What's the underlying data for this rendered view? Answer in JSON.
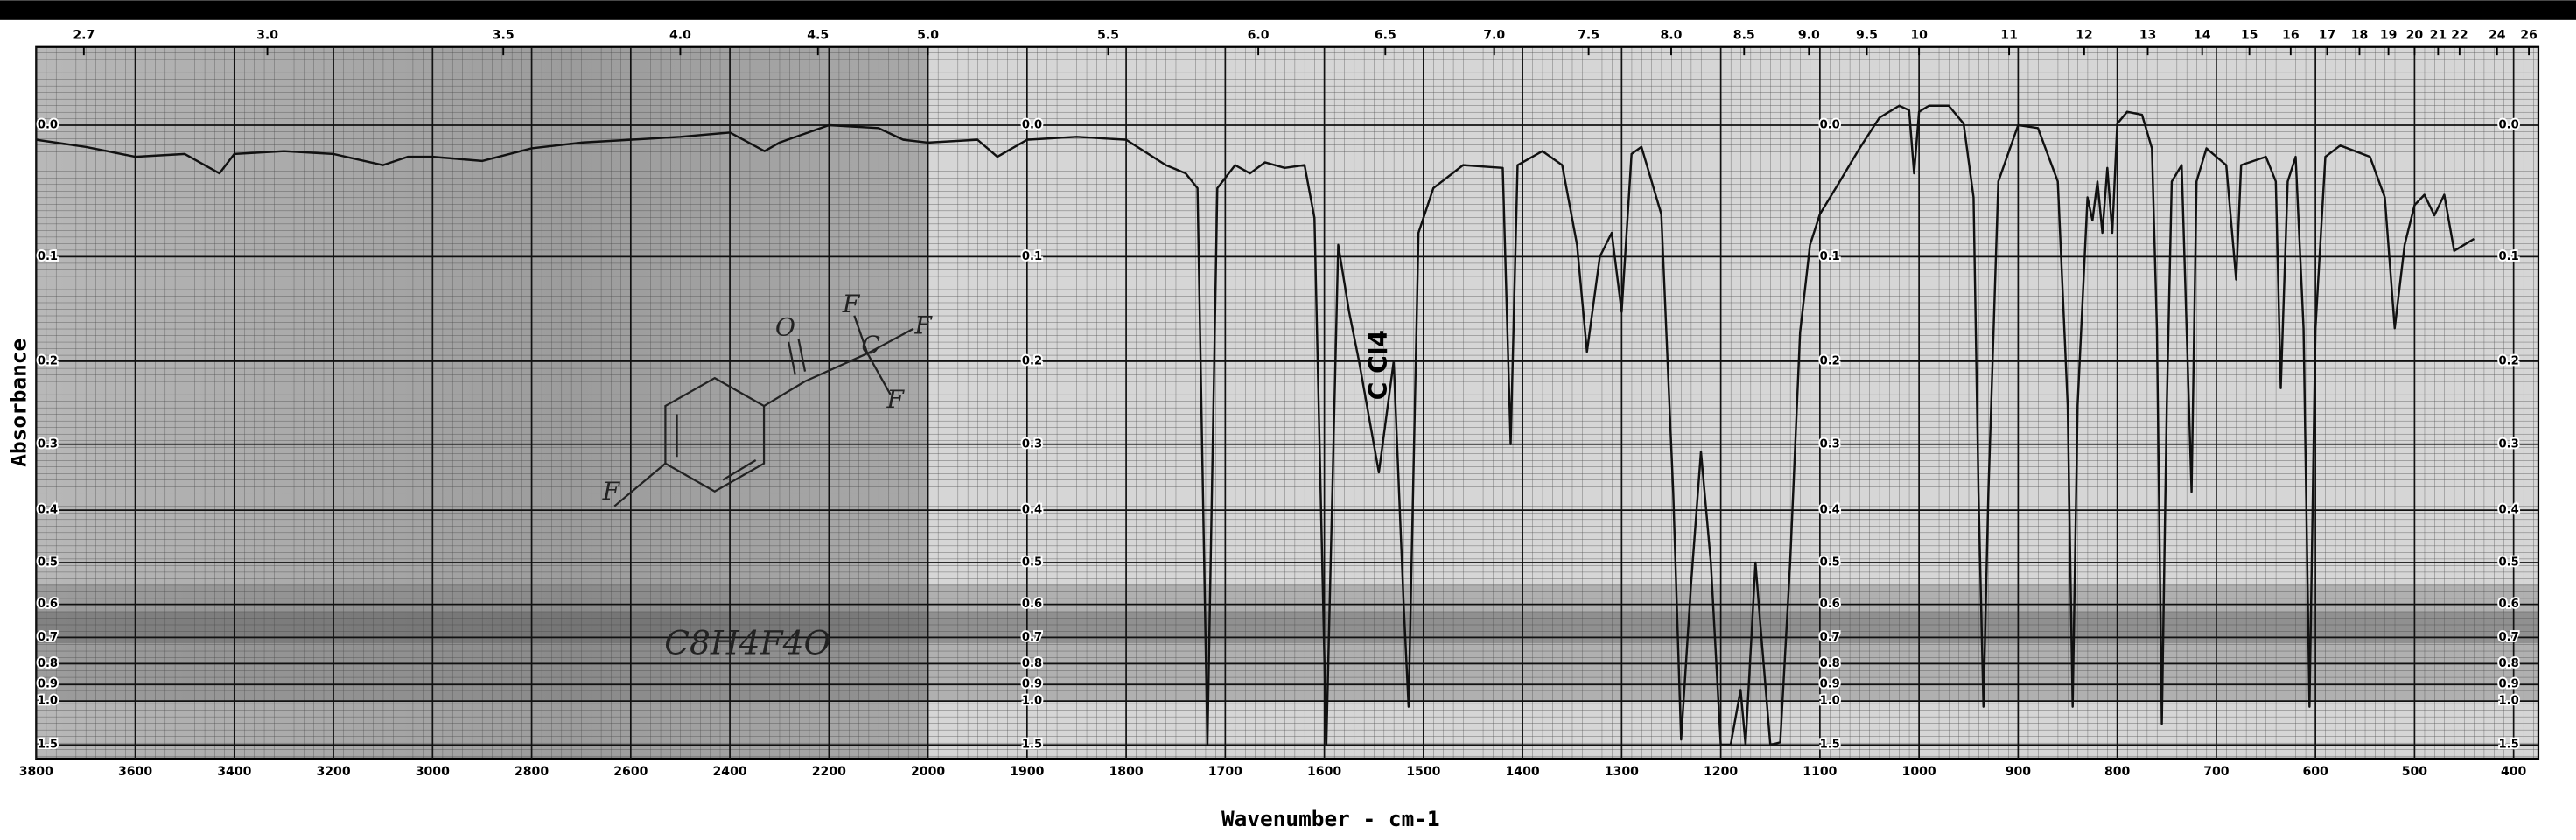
{
  "chart_data": {
    "type": "line",
    "ylabel": "Absorbance",
    "xlabel": "Wavenumber - cm-1",
    "annotations": [
      "C Cl4",
      "C8H4F4O"
    ],
    "structure_atoms": [
      "O",
      "F",
      "C",
      "F",
      "F",
      "F"
    ],
    "color": "#111111",
    "grid": true,
    "xlim": [
      3800,
      375
    ],
    "ylim": [
      -0.05,
      2
    ],
    "xticks": [
      3800,
      3600,
      3400,
      3200,
      3000,
      2800,
      2600,
      2400,
      2200,
      2000,
      1900,
      1800,
      1700,
      1600,
      1500,
      1400,
      1300,
      1200,
      1100,
      1000,
      900,
      800,
      700,
      600,
      500,
      400
    ],
    "yticks": [
      {
        "value": 0,
        "label": "0.0"
      },
      0.1,
      0.2,
      0.3,
      0.4,
      0.5,
      0.6,
      0.7,
      0.8,
      0.9,
      {
        "value": 1,
        "label": "1.0"
      },
      1.5
    ],
    "x2ticks": [
      2.7,
      {
        "value": 3,
        "label": "3.0"
      },
      3.5,
      {
        "value": 4,
        "label": "4.0"
      },
      4.5,
      {
        "value": 5,
        "label": "5.0"
      },
      5.5,
      {
        "value": 6,
        "label": "6.0"
      },
      6.5,
      {
        "value": 7,
        "label": "7.0"
      },
      7.5,
      {
        "value": 8,
        "label": "8.0"
      },
      8.5,
      {
        "value": 9,
        "label": "9.0"
      },
      9.5,
      10,
      11,
      12,
      13,
      14,
      15,
      16,
      17,
      18,
      19,
      20,
      21,
      22,
      24,
      26
    ],
    "x": [
      3800,
      3700,
      3600,
      3500,
      3430,
      3400,
      3300,
      3200,
      3100,
      3050,
      3000,
      2900,
      2800,
      2700,
      2600,
      2500,
      2400,
      2330,
      2300,
      2200,
      2100,
      2050,
      2000,
      1950,
      1930,
      1900,
      1850,
      1800,
      1760,
      1740,
      1728,
      1718,
      1708,
      1690,
      1675,
      1660,
      1640,
      1620,
      1610,
      1598,
      1586,
      1575,
      1565,
      1545,
      1530,
      1520,
      1515,
      1505,
      1490,
      1460,
      1420,
      1412,
      1405,
      1380,
      1360,
      1345,
      1335,
      1322,
      1310,
      1300,
      1290,
      1280,
      1260,
      1248,
      1240,
      1230,
      1220,
      1210,
      1200,
      1190,
      1180,
      1175,
      1165,
      1160,
      1150,
      1140,
      1130,
      1120,
      1110,
      1100,
      1080,
      1060,
      1040,
      1020,
      1010,
      1005,
      1000,
      990,
      970,
      955,
      945,
      940,
      935,
      930,
      920,
      900,
      880,
      860,
      850,
      845,
      840,
      830,
      825,
      820,
      815,
      810,
      805,
      800,
      790,
      775,
      765,
      760,
      755,
      750,
      745,
      735,
      725,
      720,
      710,
      690,
      680,
      675,
      650,
      640,
      635,
      628,
      620,
      612,
      606,
      600,
      590,
      575,
      545,
      530,
      520,
      510,
      500,
      490,
      480,
      470,
      460,
      450,
      440
    ],
    "values": [
      0.01,
      0.015,
      0.022,
      0.02,
      0.034,
      0.02,
      0.018,
      0.02,
      0.028,
      0.022,
      0.022,
      0.025,
      0.016,
      0.012,
      0.01,
      0.008,
      0.005,
      0.018,
      0.012,
      0,
      0.002,
      0.01,
      0.012,
      0.01,
      0.022,
      0.01,
      0.008,
      0.01,
      0.028,
      0.034,
      0.045,
      1.5,
      0.045,
      0.028,
      0.034,
      0.026,
      0.03,
      0.028,
      0.068,
      1.5,
      0.09,
      0.15,
      0.2,
      0.34,
      0.2,
      0.6,
      1.04,
      0.08,
      0.045,
      0.028,
      0.03,
      0.3,
      0.028,
      0.018,
      0.028,
      0.09,
      0.19,
      0.1,
      0.08,
      0.15,
      0.02,
      0.015,
      0.065,
      0.37,
      1.4,
      0.55,
      0.31,
      0.5,
      1.5,
      1.5,
      0.93,
      1.5,
      0.5,
      0.66,
      1.5,
      1.45,
      0.5,
      0.17,
      0.09,
      0.065,
      0.04,
      0.016,
      -0.005,
      -0.013,
      -0.01,
      0.034,
      -0.009,
      -0.013,
      -0.013,
      -0.001,
      0.052,
      0.37,
      1.04,
      0.37,
      0.04,
      0,
      0.002,
      0.04,
      0.25,
      1.04,
      0.25,
      0.052,
      0.07,
      0.04,
      0.08,
      0.03,
      0.08,
      -0.001,
      -0.009,
      -0.007,
      0.016,
      0.166,
      1.19,
      0.25,
      0.04,
      0.028,
      0.37,
      0.04,
      0.016,
      0.028,
      0.12,
      0.028,
      0.022,
      0.04,
      0.23,
      0.04,
      0.022,
      0.166,
      1.04,
      0.166,
      0.022,
      0.014,
      0.022,
      0.052,
      0.166,
      0.09,
      0.058,
      0.05,
      0.066,
      0.05,
      0.095,
      0.09,
      0.085
    ]
  }
}
